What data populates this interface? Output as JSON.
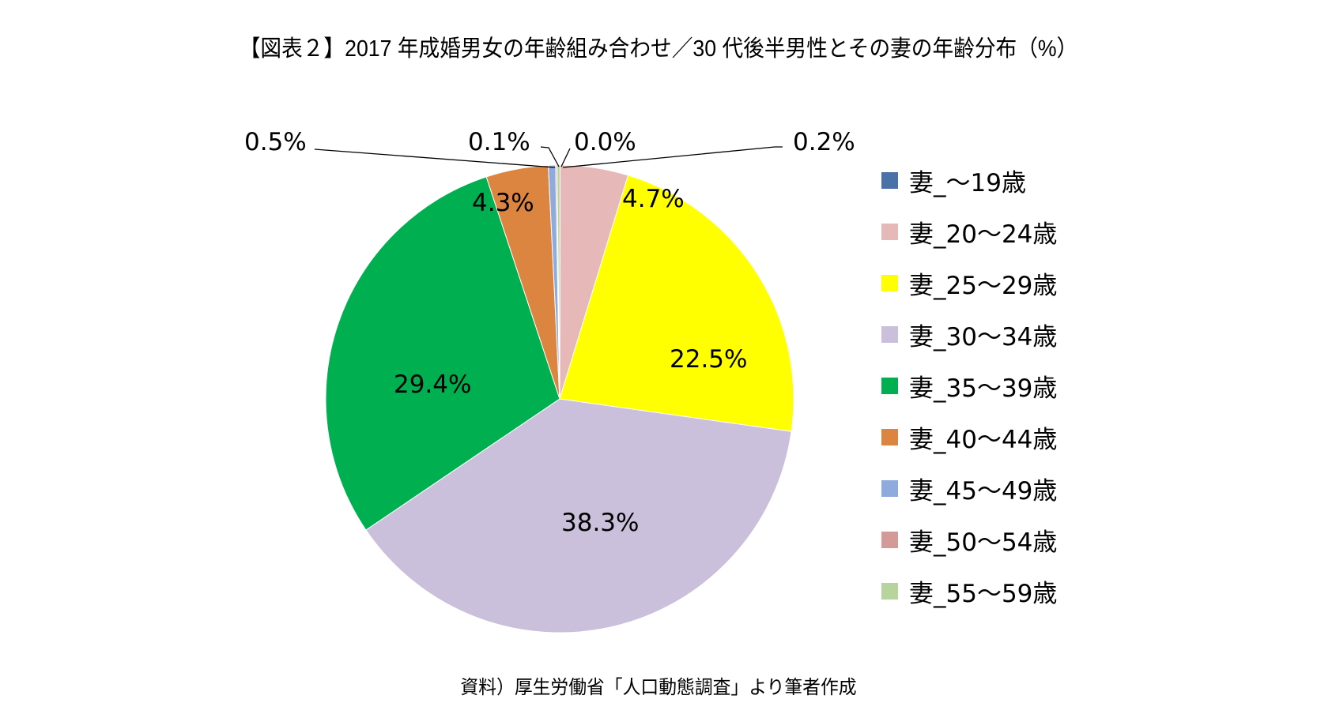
{
  "title": "【図表２】2017 年成婚男女の年齢組み合わせ／30 代後半男性とその妻の年齢分布（%）",
  "caption": "資料）厚生労働省「人口動態調査」より筆者作成",
  "chart_data": {
    "type": "pie",
    "title": "【図表２】2017 年成婚男女の年齢組み合わせ／30 代後半男性とその妻の年齢分布（%）",
    "categories": [
      "妻_〜19歳",
      "妻_20〜24歳",
      "妻_25〜29歳",
      "妻_30〜34歳",
      "妻_35〜39歳",
      "妻_40〜44歳",
      "妻_45〜49歳",
      "妻_50〜54歳",
      "妻_55〜59歳"
    ],
    "values": [
      0.0,
      4.7,
      22.5,
      38.3,
      29.4,
      4.3,
      0.5,
      0.1,
      0.2
    ],
    "labels": [
      "0.0%",
      "4.7%",
      "22.5%",
      "38.3%",
      "29.4%",
      "4.3%",
      "0.5%",
      "0.1%",
      "0.2%"
    ],
    "colors": [
      "#4a72a8",
      "#e6b8b8",
      "#ffff00",
      "#cbc0db",
      "#00b050",
      "#db8540",
      "#8faadc",
      "#d49a9a",
      "#b7d39e"
    ],
    "legend_position": "right",
    "start_angle": "12 o'clock, clockwise",
    "caption": "資料）厚生労働省「人口動態調査」より筆者作成"
  },
  "legend": [
    {
      "label": "妻_〜19歳",
      "color": "#4a72a8"
    },
    {
      "label": "妻_20〜24歳",
      "color": "#e6b8b8"
    },
    {
      "label": "妻_25〜29歳",
      "color": "#ffff00"
    },
    {
      "label": "妻_30〜34歳",
      "color": "#cbc0db"
    },
    {
      "label": "妻_35〜39歳",
      "color": "#00b050"
    },
    {
      "label": "妻_40〜44歳",
      "color": "#db8540"
    },
    {
      "label": "妻_45〜49歳",
      "color": "#8faadc"
    },
    {
      "label": "妻_50〜54歳",
      "color": "#d49a9a"
    },
    {
      "label": "妻_55〜59歳",
      "color": "#b7d39e"
    }
  ],
  "data_labels": {
    "s0": "0.0%",
    "s1": "4.7%",
    "s2": "22.5%",
    "s3": "38.3%",
    "s4": "29.4%",
    "s5": "4.3%",
    "s6": "0.5%",
    "s7": "0.1%",
    "s8": "0.2%"
  }
}
